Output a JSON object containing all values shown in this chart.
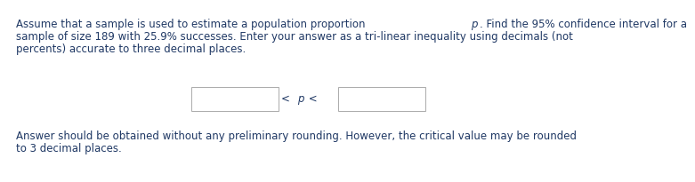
{
  "line1a": "Assume that a sample is used to estimate a population proportion ",
  "line1b": "p",
  "line1c": ". Find the 95% confidence interval for a",
  "line2": "sample of size 189 with 25.9% successes. Enter your answer as a tri-linear inequality using decimals (not",
  "line3": "percents) accurate to three decimal places.",
  "footer1": "Answer should be obtained without any preliminary rounding. However, the critical value may be rounded",
  "footer2": "to 3 decimal places.",
  "text_color": "#1F3864",
  "box_edge_color": "#aaaaaa",
  "background_color": "#ffffff",
  "font_size": 8.5,
  "box_edge_width": 0.7
}
